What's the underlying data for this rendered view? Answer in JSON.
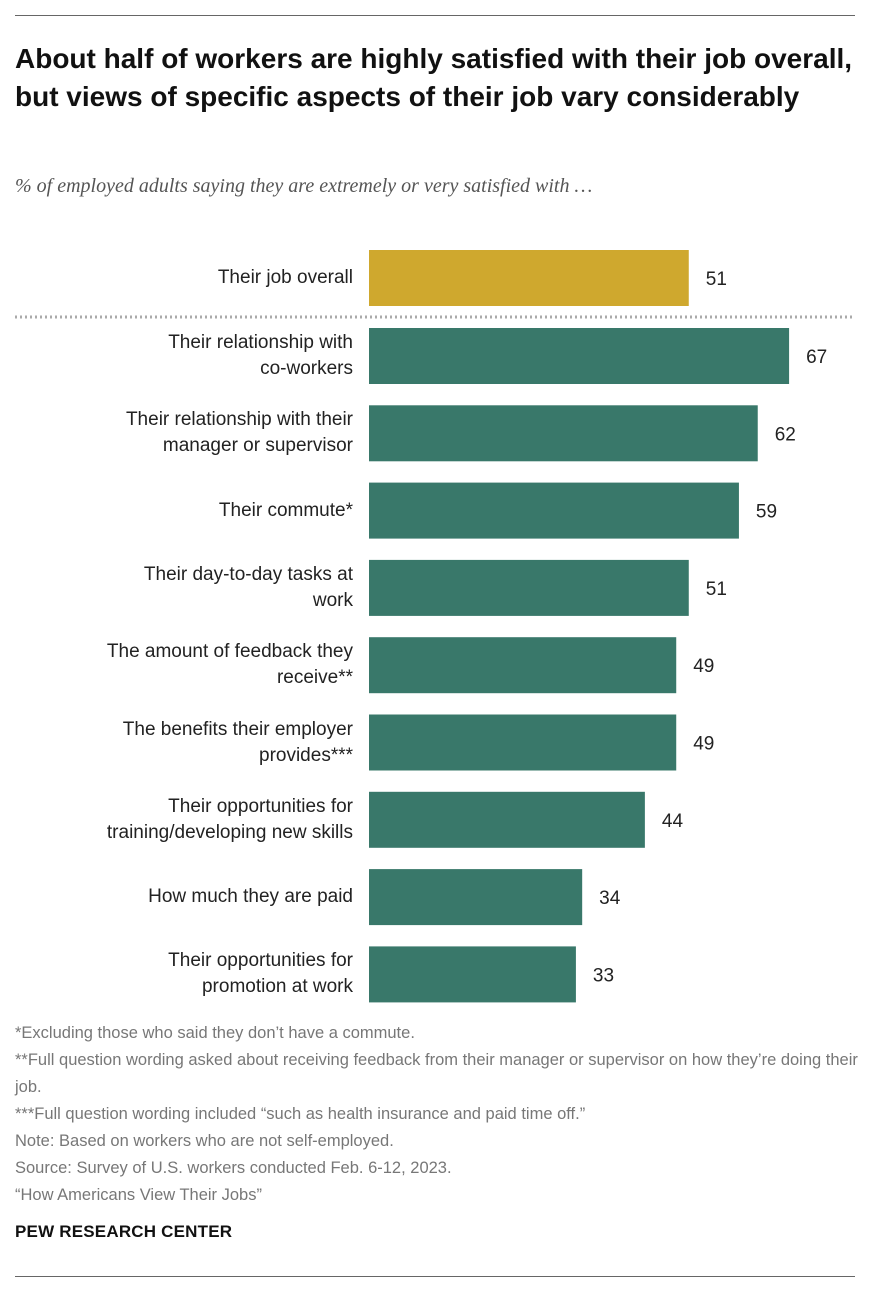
{
  "title": "About half of workers are highly satisfied with their job overall, but views of specific aspects of their job vary considerably",
  "subtitle": "% of employed adults saying they are extremely or very satisfied with …",
  "colors": {
    "highlight": "#cfa82e",
    "bar": "#39786a",
    "separator": "#aaaaaa"
  },
  "chart_data": {
    "type": "bar",
    "orientation": "horizontal",
    "categories": [
      "Their job overall",
      "Their relationship with\nco-workers",
      "Their relationship with their\nmanager or supervisor",
      "Their commute*",
      "Their day-to-day tasks at\nwork",
      "The amount of feedback they\nreceive**",
      "The benefits their employer\nprovides***",
      "Their opportunities for\ntraining/developing new skills",
      "How much they are paid",
      "Their opportunities for\npromotion at work"
    ],
    "values": [
      51,
      67,
      62,
      59,
      51,
      49,
      49,
      44,
      34,
      33
    ],
    "highlight_index": 0,
    "separator_after_index": 0,
    "xlim": [
      0,
      100
    ],
    "grid": false,
    "legend": "none"
  },
  "notes": [
    "*Excluding those who said they don’t have a commute.",
    "**Full question wording asked about receiving feedback from their manager or supervisor on how they’re doing their job.",
    "***Full question wording included “such as health insurance and paid time off.”",
    "Note: Based on workers who are not self-employed.",
    "Source: Survey of U.S. workers conducted Feb. 6-12, 2023.",
    "“How Americans View Their Jobs”"
  ],
  "brand": "PEW RESEARCH CENTER"
}
